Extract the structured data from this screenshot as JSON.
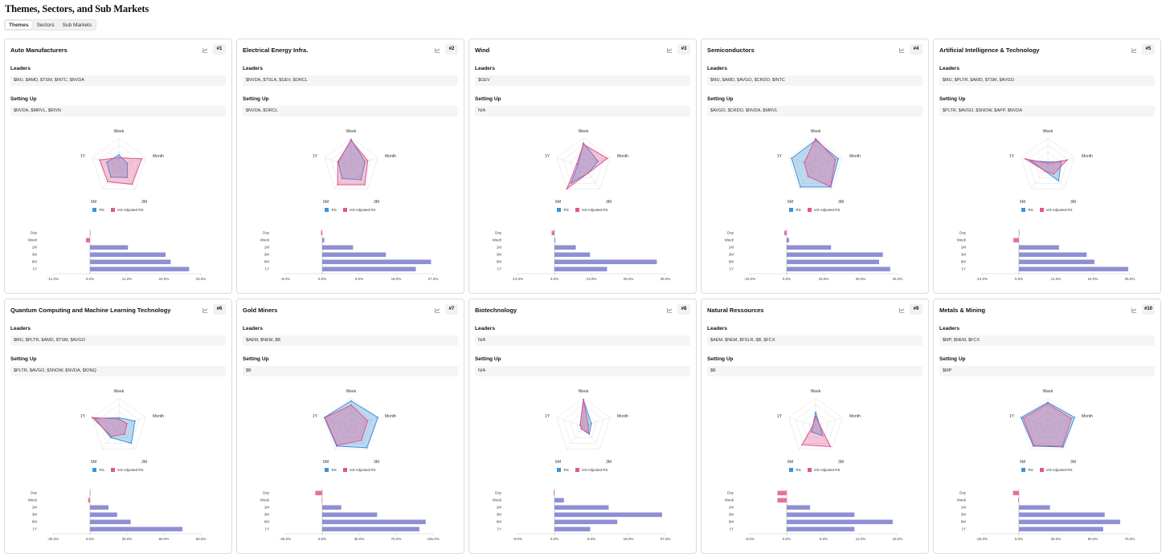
{
  "page": {
    "title": "Themes, Sectors, and Sub Markets"
  },
  "tabs": [
    {
      "label": "Themes",
      "active": true
    },
    {
      "label": "Sectors",
      "active": false
    },
    {
      "label": "Sub Markets",
      "active": false
    }
  ],
  "labels": {
    "leaders": "Leaders",
    "setting_up": "Setting Up",
    "legend_rs": "RS",
    "legend_vol": "Vol-Adjusted RS"
  },
  "colors": {
    "rs": "#3b93d8",
    "vol": "#e0568f",
    "bar": "#8f8fd4",
    "bar_neg": "#e56fa5"
  },
  "radar_axes": [
    "Week",
    "Month",
    "3M",
    "6M",
    "1Y"
  ],
  "bar_periods": [
    "Day",
    "Week",
    "1M",
    "3M",
    "6M",
    "1Y"
  ],
  "cards": [
    {
      "title": "Auto Manufacturers",
      "rank": "#1",
      "leaders": "$MU, $AMD, $TSM, $INTC, $NVDA",
      "setting_up": "$NVDA, $MRVL, $RIVN",
      "radar": {
        "rs": [
          0.4,
          0.32,
          0.5,
          0.48,
          0.45
        ],
        "vol": [
          0.3,
          0.85,
          0.8,
          0.68,
          0.72
        ]
      },
      "bars": {
        "min": -11,
        "max": 33,
        "ticks": [
          "-11.0%",
          "0.0%",
          "11.0%",
          "22.0%",
          "33.0%"
        ],
        "values": [
          0,
          -1.2,
          11.3,
          22.5,
          24,
          29.5
        ]
      }
    },
    {
      "title": "Electrical Energy Infra.",
      "rank": "#2",
      "leaders": "$NVDA, $TSLA, $GEV, $ORCL",
      "setting_up": "$NVDA, $ORCL",
      "radar": {
        "rs": [
          0.95,
          0.52,
          0.6,
          0.55,
          0.48
        ],
        "vol": [
          0.92,
          0.62,
          0.82,
          0.82,
          0.5
        ]
      },
      "bars": {
        "min": -9,
        "max": 27,
        "ticks": [
          "-9.0%",
          "0.0%",
          "9.0%",
          "18.0%",
          "27.0%"
        ],
        "values": [
          -0.3,
          0.5,
          7.5,
          15.5,
          26.5,
          22.8
        ]
      }
    },
    {
      "title": "Wind",
      "rank": "#3",
      "leaders": "$GEV",
      "setting_up": "N/A",
      "radar": {
        "rs": [
          0.82,
          0.55,
          0.3,
          0.75,
          0.2
        ],
        "vol": [
          0.78,
          0.9,
          0.3,
          1.0,
          0.25
        ]
      },
      "bars": {
        "min": -13,
        "max": 39,
        "ticks": [
          "-13.0%",
          "0.0%",
          "13.0%",
          "26.0%",
          "39.0%"
        ],
        "values": [
          -1,
          0.3,
          7.5,
          12.5,
          36,
          18.5
        ]
      }
    },
    {
      "title": "Semiconductors",
      "rank": "#4",
      "leaders": "$MU, $AMD, $AVGO, $CRDO, $INTC",
      "setting_up": "$AVGO, $CRDO, $NVDA, $MRVL",
      "radar": {
        "rs": [
          0.92,
          0.85,
          0.92,
          0.92,
          0.9
        ],
        "vol": [
          0.98,
          0.75,
          0.9,
          0.45,
          0.42
        ]
      },
      "bars": {
        "min": -15,
        "max": 45,
        "ticks": [
          "-15.0%",
          "0.0%",
          "15.0%",
          "30.0%",
          "45.0%"
        ],
        "values": [
          -1,
          1,
          18,
          39,
          37.5,
          42
        ]
      }
    },
    {
      "title": "Artificial Intelligence & Technology",
      "rank": "#5",
      "leaders": "$MU, $PLTR, $AMD, $TSM, $AVGO",
      "setting_up": "$PLTR, $AVGO, $SNOW, $APP, $NVDA",
      "radar": {
        "rs": [
          0.15,
          0.5,
          0.65,
          0.2,
          0.65
        ],
        "vol": [
          0.1,
          0.72,
          0.35,
          0.2,
          0.85
        ]
      },
      "bars": {
        "min": -12,
        "max": 36,
        "ticks": [
          "-12.0%",
          "0.0%",
          "12.0%",
          "24.0%",
          "36.0%"
        ],
        "values": [
          0,
          -1.8,
          13,
          22,
          24.5,
          35.5
        ]
      }
    },
    {
      "title": "Quantum Computing and Machine Learning Technology",
      "rank": "#6",
      "leaders": "$MU, $PLTR, $AMD, $TSM, $AVGO",
      "setting_up": "$PLTR, $AVGO, $SNOW, $NVDA, $IONQ",
      "radar": {
        "rs": [
          0.3,
          0.6,
          0.75,
          0.5,
          0.9
        ],
        "vol": [
          0.25,
          0.3,
          0.35,
          0.45,
          1.0
        ]
      },
      "bars": {
        "min": -30,
        "max": 90,
        "ticks": [
          "-30.0%",
          "0.0%",
          "30.0%",
          "60.0%",
          "90.0%"
        ],
        "values": [
          0.3,
          -1.5,
          15,
          22,
          33,
          75
        ]
      }
    },
    {
      "title": "Gold Miners",
      "rank": "#7",
      "leaders": "$AEM, $NEM, $B",
      "setting_up": "$B",
      "radar": {
        "rs": [
          0.9,
          1.0,
          0.95,
          0.88,
          1.0
        ],
        "vol": [
          0.75,
          0.62,
          0.62,
          0.85,
          0.98
        ]
      },
      "bars": {
        "min": -35,
        "max": 105,
        "ticks": [
          "-35.0%",
          "0.0%",
          "35.0%",
          "70.0%",
          "105.0%"
        ],
        "values": [
          -6.5,
          -0.5,
          18,
          52,
          98,
          92
        ]
      }
    },
    {
      "title": "Biotechnology",
      "rank": "#8",
      "leaders": "N/A",
      "setting_up": "N/A",
      "radar": {
        "rs": [
          0.95,
          0.3,
          0.35,
          0.12,
          0.12
        ],
        "vol": [
          0.95,
          0.18,
          0.3,
          0.12,
          0.12
        ]
      },
      "bars": {
        "min": -9,
        "max": 27,
        "ticks": [
          "-9.0%",
          "0.0%",
          "9.0%",
          "18.0%",
          "27.0%"
        ],
        "values": [
          -0.2,
          2.3,
          13.2,
          26.2,
          15.3,
          8.7
        ]
      }
    },
    {
      "title": "Natural Ressources",
      "rank": "#9",
      "leaders": "$AEM, $NEM, $FSLR, $B, $FCX",
      "setting_up": "$B",
      "radar": {
        "rs": [
          0.5,
          0.15,
          0.42,
          0.25,
          0.1
        ],
        "vol": [
          0.35,
          0.15,
          0.9,
          0.82,
          0.1
        ]
      },
      "bars": {
        "min": -6,
        "max": 18,
        "ticks": [
          "-6.0%",
          "0.0%",
          "6.0%",
          "12.0%",
          "18.0%"
        ],
        "values": [
          -1.5,
          -1.5,
          3.8,
          11,
          17.2,
          11
        ]
      }
    },
    {
      "title": "Metals & Mining",
      "rank": "#10",
      "leaders": "$MP, $NEM, $FCX",
      "setting_up": "$MP",
      "radar": {
        "rs": [
          0.85,
          1.0,
          0.92,
          0.88,
          1.0
        ],
        "vol": [
          0.8,
          0.88,
          0.88,
          0.85,
          0.92
        ]
      },
      "bars": {
        "min": -25,
        "max": 75,
        "ticks": [
          "-25.0%",
          "0.0%",
          "25.0%",
          "50.0%",
          "75.0%"
        ],
        "values": [
          -4,
          -0.5,
          21,
          58,
          68.5,
          57
        ]
      }
    }
  ]
}
